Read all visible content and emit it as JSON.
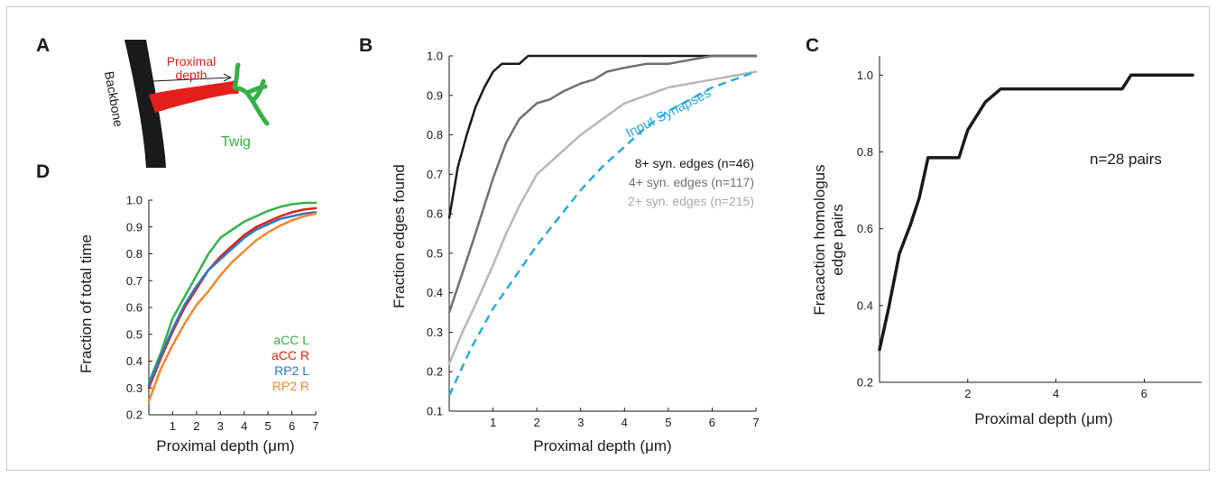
{
  "panels": {
    "A": "A",
    "B": "B",
    "C": "C",
    "D": "D"
  },
  "schematic": {
    "backbone_label": "Backbone",
    "proximal_label_line1": "Proximal",
    "proximal_label_line2": "depth",
    "twig_label": "Twig",
    "colors": {
      "backbone": "#1a1a1a",
      "proximal": "#e3211c",
      "twig": "#36b046"
    }
  },
  "chart_data": [
    {
      "id": "B",
      "type": "line",
      "title": "",
      "xlabel": "Proximal depth (μm)",
      "ylabel": "Fraction edges found",
      "xlim": [
        0,
        7
      ],
      "ylim": [
        0.1,
        1.0
      ],
      "xticks": [
        1,
        2,
        3,
        4,
        5,
        6,
        7
      ],
      "yticks": [
        0.1,
        0.2,
        0.3,
        0.4,
        0.5,
        0.6,
        0.7,
        0.8,
        0.9,
        1.0
      ],
      "ytick_labels": [
        "0.1",
        "0.2",
        "0.3",
        "0.4",
        "0.5",
        "0.6",
        "0.7",
        "0.8",
        "0.9",
        "1.0"
      ],
      "grid": false,
      "series": [
        {
          "name": "8+ syn. edges (n=46)",
          "color": "#1a1a1a",
          "dashed": false,
          "x": [
            0,
            0.2,
            0.4,
            0.6,
            0.8,
            1.0,
            1.2,
            1.4,
            1.6,
            1.8,
            2.0,
            3.0,
            4.0,
            5.0,
            6.0,
            7.0
          ],
          "y": [
            0.59,
            0.72,
            0.8,
            0.87,
            0.92,
            0.96,
            0.98,
            0.98,
            0.98,
            1.0,
            1.0,
            1.0,
            1.0,
            1.0,
            1.0,
            1.0
          ]
        },
        {
          "name": "4+ syn. edges (n=117)",
          "color": "#707070",
          "dashed": false,
          "x": [
            0,
            0.3,
            0.6,
            1.0,
            1.3,
            1.6,
            2.0,
            2.3,
            2.6,
            3.0,
            3.3,
            3.6,
            4.0,
            4.5,
            5.0,
            5.5,
            6.0,
            6.5,
            7.0
          ],
          "y": [
            0.35,
            0.45,
            0.55,
            0.69,
            0.78,
            0.84,
            0.88,
            0.89,
            0.91,
            0.93,
            0.94,
            0.96,
            0.97,
            0.98,
            0.98,
            0.99,
            1.0,
            1.0,
            1.0
          ]
        },
        {
          "name": "2+ syn. edges (n=215)",
          "color": "#b7b7b7",
          "dashed": false,
          "x": [
            0,
            0.3,
            0.6,
            1.0,
            1.3,
            1.6,
            2.0,
            2.3,
            2.6,
            3.0,
            3.5,
            4.0,
            4.5,
            5.0,
            5.5,
            6.0,
            6.5,
            7.0
          ],
          "y": [
            0.22,
            0.3,
            0.37,
            0.47,
            0.55,
            0.62,
            0.7,
            0.73,
            0.76,
            0.8,
            0.84,
            0.88,
            0.9,
            0.92,
            0.93,
            0.94,
            0.95,
            0.96
          ]
        },
        {
          "name": "Input Synapses",
          "color": "#28a9e0",
          "dashed": true,
          "x": [
            0,
            0.5,
            1.0,
            1.5,
            2.0,
            2.5,
            3.0,
            3.5,
            4.0,
            4.5,
            5.0,
            5.5,
            6.0,
            6.5,
            7.0
          ],
          "y": [
            0.14,
            0.26,
            0.36,
            0.44,
            0.52,
            0.59,
            0.66,
            0.72,
            0.77,
            0.82,
            0.86,
            0.89,
            0.92,
            0.94,
            0.96
          ]
        }
      ]
    },
    {
      "id": "C",
      "type": "line",
      "title": "",
      "xlabel": "Proximal depth (μm)",
      "ylabel": "Fracaction homologus edge pairs",
      "annotation": "n=28 pairs",
      "xlim": [
        0,
        7.3
      ],
      "ylim": [
        0.2,
        1.05
      ],
      "xticks": [
        2,
        4,
        6
      ],
      "yticks": [
        0.2,
        0.4,
        0.6,
        0.8,
        1.0
      ],
      "ytick_labels": [
        "0.2",
        "0.4",
        "0.6",
        "0.8",
        "1.0"
      ],
      "grid": false,
      "series": [
        {
          "name": "",
          "color": "#1a1a1a",
          "dashed": false,
          "x": [
            0,
            0.2,
            0.45,
            0.7,
            0.9,
            1.1,
            1.3,
            1.6,
            1.8,
            2.0,
            2.4,
            2.75,
            5.5,
            5.7,
            7.1
          ],
          "y": [
            0.285,
            0.39,
            0.535,
            0.61,
            0.68,
            0.785,
            0.785,
            0.785,
            0.785,
            0.857,
            0.93,
            0.964,
            0.964,
            1.0,
            1.0
          ]
        }
      ]
    },
    {
      "id": "D",
      "type": "line",
      "title": "",
      "xlabel": "Proximal depth (μm)",
      "ylabel": "Fraction of total time",
      "xlim": [
        0,
        7
      ],
      "ylim": [
        0.2,
        1.0
      ],
      "xticks": [
        1,
        2,
        3,
        4,
        5,
        6,
        7
      ],
      "yticks": [
        0.2,
        0.3,
        0.4,
        0.5,
        0.6,
        0.7,
        0.8,
        0.9,
        1.0
      ],
      "ytick_labels": [
        "0.2",
        "0.3",
        "0.4",
        "0.5",
        "0.6",
        "0.7",
        "0.8",
        "0.9",
        "1.0"
      ],
      "grid": false,
      "series": [
        {
          "name": "aCC L",
          "color": "#36b046",
          "dashed": false,
          "x": [
            0,
            0.5,
            1.0,
            1.5,
            2.0,
            2.5,
            3.0,
            3.5,
            4.0,
            4.5,
            5.0,
            5.5,
            6.0,
            6.5,
            7.0
          ],
          "y": [
            0.32,
            0.43,
            0.56,
            0.64,
            0.72,
            0.8,
            0.86,
            0.89,
            0.92,
            0.94,
            0.96,
            0.975,
            0.985,
            0.99,
            0.99
          ]
        },
        {
          "name": "aCC R",
          "color": "#e3211c",
          "dashed": false,
          "x": [
            0,
            0.5,
            1.0,
            1.5,
            2.0,
            2.5,
            3.0,
            3.5,
            4.0,
            4.5,
            5.0,
            5.5,
            6.0,
            6.5,
            7.0
          ],
          "y": [
            0.3,
            0.41,
            0.51,
            0.6,
            0.67,
            0.74,
            0.79,
            0.83,
            0.87,
            0.9,
            0.92,
            0.94,
            0.955,
            0.965,
            0.97
          ]
        },
        {
          "name": "RP2 L",
          "color": "#2b78c5",
          "dashed": false,
          "x": [
            0,
            0.5,
            1.0,
            1.5,
            2.0,
            2.5,
            3.0,
            3.5,
            4.0,
            4.5,
            5.0,
            5.5,
            6.0,
            6.5,
            7.0
          ],
          "y": [
            0.31,
            0.42,
            0.52,
            0.61,
            0.68,
            0.74,
            0.78,
            0.82,
            0.86,
            0.89,
            0.91,
            0.93,
            0.94,
            0.95,
            0.955
          ]
        },
        {
          "name": "RP2 R",
          "color": "#f2892b",
          "dashed": false,
          "x": [
            0,
            0.5,
            1.0,
            1.5,
            2.0,
            2.5,
            3.0,
            3.5,
            4.0,
            4.5,
            5.0,
            5.5,
            6.0,
            6.5,
            7.0
          ],
          "y": [
            0.25,
            0.37,
            0.46,
            0.54,
            0.61,
            0.66,
            0.72,
            0.77,
            0.81,
            0.85,
            0.88,
            0.905,
            0.925,
            0.94,
            0.95
          ]
        }
      ]
    }
  ],
  "legend_B": [
    {
      "text": "8+ syn. edges (n=46)",
      "color": "#1a1a1a"
    },
    {
      "text": "4+ syn. edges (n=117)",
      "color": "#707070"
    },
    {
      "text": "2+ syn. edges (n=215)",
      "color": "#a9a9a9"
    }
  ],
  "input_synapses_label": "Input Synapses",
  "legend_D": [
    {
      "text": "aCC L",
      "color": "#36b046"
    },
    {
      "text": "aCC R",
      "color": "#e3211c"
    },
    {
      "text": "RP2 L",
      "color": "#2b78c5"
    },
    {
      "text": "RP2 R",
      "color": "#f2892b"
    }
  ]
}
